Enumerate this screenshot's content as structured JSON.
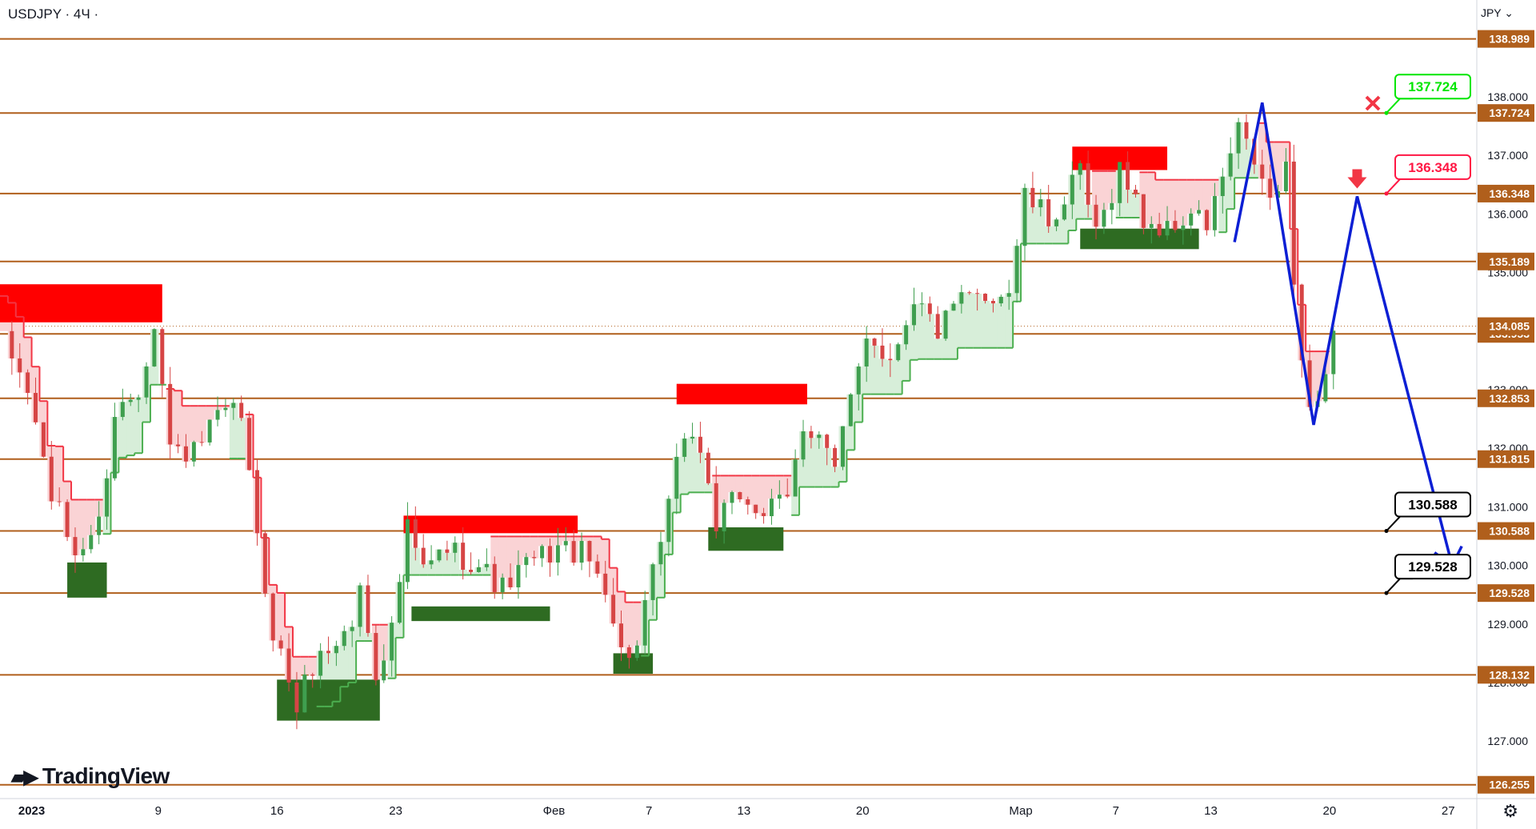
{
  "header": {
    "symbol": "USDJPY",
    "sep1": "·",
    "timeframe": "4Ч",
    "sep2": "·"
  },
  "currency": "JPY",
  "logo": {
    "mark": "TV",
    "text": "TradingView"
  },
  "settings_icon": "gear-icon",
  "colors": {
    "level_line": "#b05f1c",
    "price_tag": "#b05f1c",
    "candle_up": "#3f9f4f",
    "candle_down": "#d64545",
    "trail_up": "#4caf50",
    "trail_down": "#f23645",
    "fill_up": "#d7eed9",
    "fill_down": "#fad3d5",
    "supply_zone": "#ff0000",
    "demand_zone": "#2e6b22",
    "projection": "#0c1fd4",
    "callout_green": "#00e600",
    "callout_red": "#ff1744",
    "callout_black": "#000000",
    "current_price": "#b05f1c"
  },
  "chart_data": {
    "type": "candlestick",
    "title": "USDJPY · 4Ч ·",
    "ylim": [
      126.0,
      139.6
    ],
    "y_ticks": [
      "138.000",
      "137.000",
      "136.000",
      "135.000",
      "133.000",
      "132.000",
      "131.000",
      "130.000",
      "129.000",
      "128.000",
      "127.000"
    ],
    "x_ticks": [
      "2023",
      "9",
      "16",
      "23",
      "Фев",
      "7",
      "13",
      "20",
      "Мар",
      "7",
      "13",
      "20",
      "27"
    ],
    "levels": [
      138.989,
      137.724,
      136.348,
      135.189,
      133.953,
      132.853,
      131.815,
      130.588,
      129.528,
      128.132,
      126.255
    ],
    "current_price": 134.085,
    "callouts": [
      {
        "value": "137.724",
        "color": "green",
        "marker": "x"
      },
      {
        "value": "136.348",
        "color": "red"
      },
      {
        "value": "130.588",
        "color": "black"
      },
      {
        "value": "129.528",
        "color": "black"
      }
    ],
    "projection_path": [
      {
        "t": 156,
        "p": 135.52
      },
      {
        "t": 159.5,
        "p": 137.9
      },
      {
        "t": 166,
        "p": 132.4
      },
      {
        "t": 171.5,
        "p": 136.3
      },
      {
        "t": 183.5,
        "p": 130.0
      }
    ],
    "supply_zones": [
      {
        "t0": 0,
        "t1": 20.5,
        "top": 134.8,
        "bottom": 134.15
      },
      {
        "t0": 51,
        "t1": 73,
        "top": 130.85,
        "bottom": 130.55
      },
      {
        "t0": 85.5,
        "t1": 102,
        "top": 133.1,
        "bottom": 132.75
      },
      {
        "t0": 135.5,
        "t1": 147.5,
        "top": 137.15,
        "bottom": 136.75
      }
    ],
    "demand_zones": [
      {
        "t0": 8.5,
        "t1": 13.5,
        "top": 130.05,
        "bottom": 129.45
      },
      {
        "t0": 35,
        "t1": 48,
        "top": 128.05,
        "bottom": 127.35
      },
      {
        "t0": 52,
        "t1": 69.5,
        "top": 129.3,
        "bottom": 129.05
      },
      {
        "t0": 77.5,
        "t1": 82.5,
        "top": 128.5,
        "bottom": 128.15
      },
      {
        "t0": 89.5,
        "t1": 99,
        "top": 130.65,
        "bottom": 130.25
      },
      {
        "t0": 136.5,
        "t1": 151.5,
        "top": 135.75,
        "bottom": 135.4
      }
    ],
    "anchors": [
      {
        "t": 0,
        "p": 133.8
      },
      {
        "t": 3,
        "p": 133.0
      },
      {
        "t": 6,
        "p": 131.2
      },
      {
        "t": 9,
        "p": 130.2
      },
      {
        "t": 12,
        "p": 130.7
      },
      {
        "t": 14,
        "p": 132.6
      },
      {
        "t": 17,
        "p": 133.0
      },
      {
        "t": 19,
        "p": 134.2
      },
      {
        "t": 21,
        "p": 132.0
      },
      {
        "t": 24,
        "p": 131.9
      },
      {
        "t": 27,
        "p": 132.5
      },
      {
        "t": 30,
        "p": 132.6
      },
      {
        "t": 32,
        "p": 130.4
      },
      {
        "t": 34,
        "p": 128.9
      },
      {
        "t": 37,
        "p": 127.6
      },
      {
        "t": 39,
        "p": 128.3
      },
      {
        "t": 42,
        "p": 128.7
      },
      {
        "t": 44,
        "p": 129.0
      },
      {
        "t": 45,
        "p": 129.6
      },
      {
        "t": 47,
        "p": 128.2
      },
      {
        "t": 49,
        "p": 128.9
      },
      {
        "t": 51,
        "p": 130.6
      },
      {
        "t": 53,
        "p": 129.9
      },
      {
        "t": 56,
        "p": 130.3
      },
      {
        "t": 60,
        "p": 130.0
      },
      {
        "t": 63,
        "p": 129.6
      },
      {
        "t": 66,
        "p": 130.0
      },
      {
        "t": 70,
        "p": 130.3
      },
      {
        "t": 73,
        "p": 130.2
      },
      {
        "t": 76,
        "p": 129.7
      },
      {
        "t": 78,
        "p": 128.5
      },
      {
        "t": 80,
        "p": 128.6
      },
      {
        "t": 82,
        "p": 129.8
      },
      {
        "t": 84,
        "p": 131.0
      },
      {
        "t": 86,
        "p": 132.3
      },
      {
        "t": 88,
        "p": 132.0
      },
      {
        "t": 90,
        "p": 130.7
      },
      {
        "t": 93,
        "p": 131.2
      },
      {
        "t": 96,
        "p": 130.9
      },
      {
        "t": 99,
        "p": 131.1
      },
      {
        "t": 101,
        "p": 132.4
      },
      {
        "t": 103,
        "p": 132.3
      },
      {
        "t": 105,
        "p": 131.6
      },
      {
        "t": 107,
        "p": 132.8
      },
      {
        "t": 109,
        "p": 134.0
      },
      {
        "t": 112,
        "p": 133.5
      },
      {
        "t": 115,
        "p": 134.6
      },
      {
        "t": 118,
        "p": 134.0
      },
      {
        "t": 121,
        "p": 134.5
      },
      {
        "t": 124,
        "p": 134.6
      },
      {
        "t": 127,
        "p": 134.7
      },
      {
        "t": 129,
        "p": 136.3
      },
      {
        "t": 132,
        "p": 135.9
      },
      {
        "t": 134,
        "p": 136.2
      },
      {
        "t": 136,
        "p": 136.7
      },
      {
        "t": 138,
        "p": 135.6
      },
      {
        "t": 141,
        "p": 136.8
      },
      {
        "t": 144,
        "p": 135.9
      },
      {
        "t": 147,
        "p": 135.7
      },
      {
        "t": 150,
        "p": 136.0
      },
      {
        "t": 152,
        "p": 135.8
      },
      {
        "t": 154,
        "p": 136.6
      },
      {
        "t": 156,
        "p": 137.4
      },
      {
        "t": 158,
        "p": 136.9
      },
      {
        "t": 160,
        "p": 136.2
      },
      {
        "t": 162,
        "p": 136.7
      },
      {
        "t": 163,
        "p": 134.8
      },
      {
        "t": 165,
        "p": 132.6
      },
      {
        "t": 167,
        "p": 133.3
      },
      {
        "t": 168,
        "p": 134.0
      }
    ]
  }
}
